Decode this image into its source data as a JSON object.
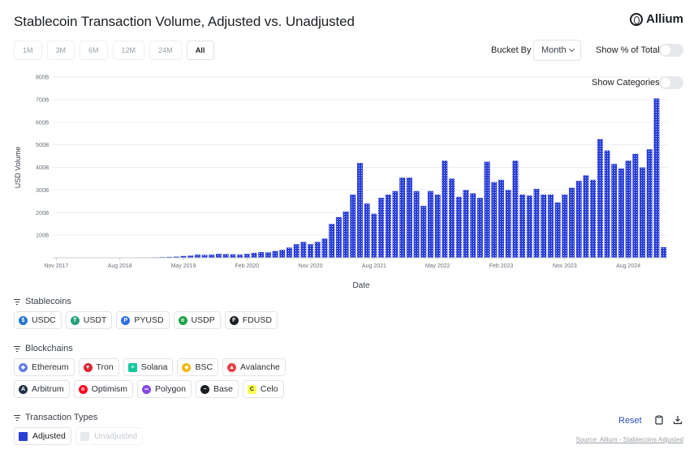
{
  "header": {
    "title": "Stablecoin Transaction Volume, Adjusted vs. Unadjusted",
    "brand": "Allium"
  },
  "ranges": [
    "1M",
    "3M",
    "6M",
    "12M",
    "24M",
    "All"
  ],
  "active_range": "All",
  "controls": {
    "bucket_label": "Bucket By",
    "bucket_value": "Month",
    "show_pct_label": "Show % of Total",
    "show_pct_on": false,
    "show_categories_label": "Show Categories",
    "show_categories_on": false
  },
  "chart_data": {
    "type": "bar",
    "title": "Stablecoin Transaction Volume, Adjusted vs. Unadjusted",
    "xlabel": "Date",
    "ylabel": "USD Volume",
    "y_unit": "USD billions",
    "ylim": [
      0,
      800
    ],
    "y_ticks": [
      100,
      200,
      300,
      400,
      500,
      600,
      700,
      800
    ],
    "y_tick_labels": [
      "100B",
      "200B",
      "300B",
      "400B",
      "500B",
      "600B",
      "700B",
      "800B"
    ],
    "x_tick_labels": [
      "Nov 2017",
      "Aug 2018",
      "May 2019",
      "Feb 2020",
      "Nov 2020",
      "Aug 2021",
      "May 2022",
      "Feb 2023",
      "Nov 2023",
      "Aug 2024"
    ],
    "grid": "horizontal",
    "colors": {
      "bar": "#2b3fd6",
      "bar_pattern": "#c9d0ff"
    },
    "categories": [
      "Nov 2017",
      "Dec 2017",
      "Jan 2018",
      "Feb 2018",
      "Mar 2018",
      "Apr 2018",
      "May 2018",
      "Jun 2018",
      "Jul 2018",
      "Aug 2018",
      "Sep 2018",
      "Oct 2018",
      "Nov 2018",
      "Dec 2018",
      "Jan 2019",
      "Feb 2019",
      "Mar 2019",
      "Apr 2019",
      "May 2019",
      "Jun 2019",
      "Jul 2019",
      "Aug 2019",
      "Sep 2019",
      "Oct 2019",
      "Nov 2019",
      "Dec 2019",
      "Jan 2020",
      "Feb 2020",
      "Mar 2020",
      "Apr 2020",
      "May 2020",
      "Jun 2020",
      "Jul 2020",
      "Aug 2020",
      "Sep 2020",
      "Oct 2020",
      "Nov 2020",
      "Dec 2020",
      "Jan 2021",
      "Feb 2021",
      "Mar 2021",
      "Apr 2021",
      "May 2021",
      "Jun 2021",
      "Jul 2021",
      "Aug 2021",
      "Sep 2021",
      "Oct 2021",
      "Nov 2021",
      "Dec 2021",
      "Jan 2022",
      "Feb 2022",
      "Mar 2022",
      "Apr 2022",
      "May 2022",
      "Jun 2022",
      "Jul 2022",
      "Aug 2022",
      "Sep 2022",
      "Oct 2022",
      "Nov 2022",
      "Dec 2022",
      "Jan 2023",
      "Feb 2023",
      "Mar 2023",
      "Apr 2023",
      "May 2023",
      "Jun 2023",
      "Jul 2023",
      "Aug 2023",
      "Sep 2023",
      "Oct 2023",
      "Nov 2023",
      "Dec 2023",
      "Jan 2024",
      "Feb 2024",
      "Mar 2024",
      "Apr 2024",
      "May 2024",
      "Jun 2024",
      "Jul 2024",
      "Aug 2024",
      "Sep 2024",
      "Oct 2024",
      "Nov 2024",
      "Dec 2024",
      "Jan 2025"
    ],
    "series": [
      {
        "name": "Adjusted",
        "values": [
          0.3,
          0.4,
          0.5,
          0.5,
          0.6,
          0.7,
          0.8,
          0.9,
          1,
          1.2,
          1.5,
          1.5,
          2,
          2,
          2.5,
          3,
          4,
          5,
          8,
          10,
          14,
          13,
          14,
          17,
          16,
          15,
          14,
          17,
          22,
          25,
          24,
          30,
          35,
          45,
          60,
          70,
          60,
          70,
          85,
          150,
          180,
          205,
          280,
          420,
          240,
          195,
          265,
          280,
          295,
          355,
          355,
          295,
          230,
          295,
          280,
          430,
          350,
          270,
          300,
          285,
          265,
          425,
          335,
          345,
          300,
          430,
          280,
          275,
          305,
          280,
          280,
          245,
          280,
          310,
          340,
          365,
          345,
          525,
          475,
          415,
          395,
          430,
          460,
          400,
          480,
          705,
          47
        ]
      }
    ]
  },
  "sections": {
    "stablecoins": {
      "title": "Stablecoins",
      "items": [
        {
          "label": "USDC",
          "icon": "usdc-icon",
          "color": "#2775ca"
        },
        {
          "label": "USDT",
          "icon": "usdt-icon",
          "color": "#26a17b"
        },
        {
          "label": "PYUSD",
          "icon": "pyusd-icon",
          "color": "#2f6fe0"
        },
        {
          "label": "USDP",
          "icon": "usdp-icon",
          "color": "#1ea24a"
        },
        {
          "label": "FDUSD",
          "icon": "fdusd-icon",
          "color": "#1b1f24"
        }
      ]
    },
    "blockchains": {
      "title": "Blockchains",
      "row1": [
        {
          "label": "Ethereum",
          "icon": "ethereum-icon",
          "color": "#627eea"
        },
        {
          "label": "Tron",
          "icon": "tron-icon",
          "color": "#e0242c"
        },
        {
          "label": "Solana",
          "icon": "solana-icon",
          "color": "#14c8a0"
        },
        {
          "label": "BSC",
          "icon": "bsc-icon",
          "color": "#f0b90b"
        },
        {
          "label": "Avalanche",
          "icon": "avalanche-icon",
          "color": "#e84142"
        }
      ],
      "row2": [
        {
          "label": "Arbitrum",
          "icon": "arbitrum-icon",
          "color": "#213147"
        },
        {
          "label": "Optimism",
          "icon": "optimism-icon",
          "color": "#ff0420"
        },
        {
          "label": "Polygon",
          "icon": "polygon-icon",
          "color": "#8247e5"
        },
        {
          "label": "Base",
          "icon": "base-icon",
          "color": "#1b1f24"
        },
        {
          "label": "Celo",
          "icon": "celo-icon",
          "color": "#fcff52"
        }
      ]
    },
    "transaction_types": {
      "title": "Transaction Types",
      "adjusted": {
        "label": "Adjusted",
        "color": "#2b3fd6"
      },
      "unadjusted": {
        "label": "Unadjusted",
        "color": "#e6e8eb"
      }
    }
  },
  "footer": {
    "reset": "Reset",
    "source": "Source: Allium - Stablecoins Adjusted"
  }
}
